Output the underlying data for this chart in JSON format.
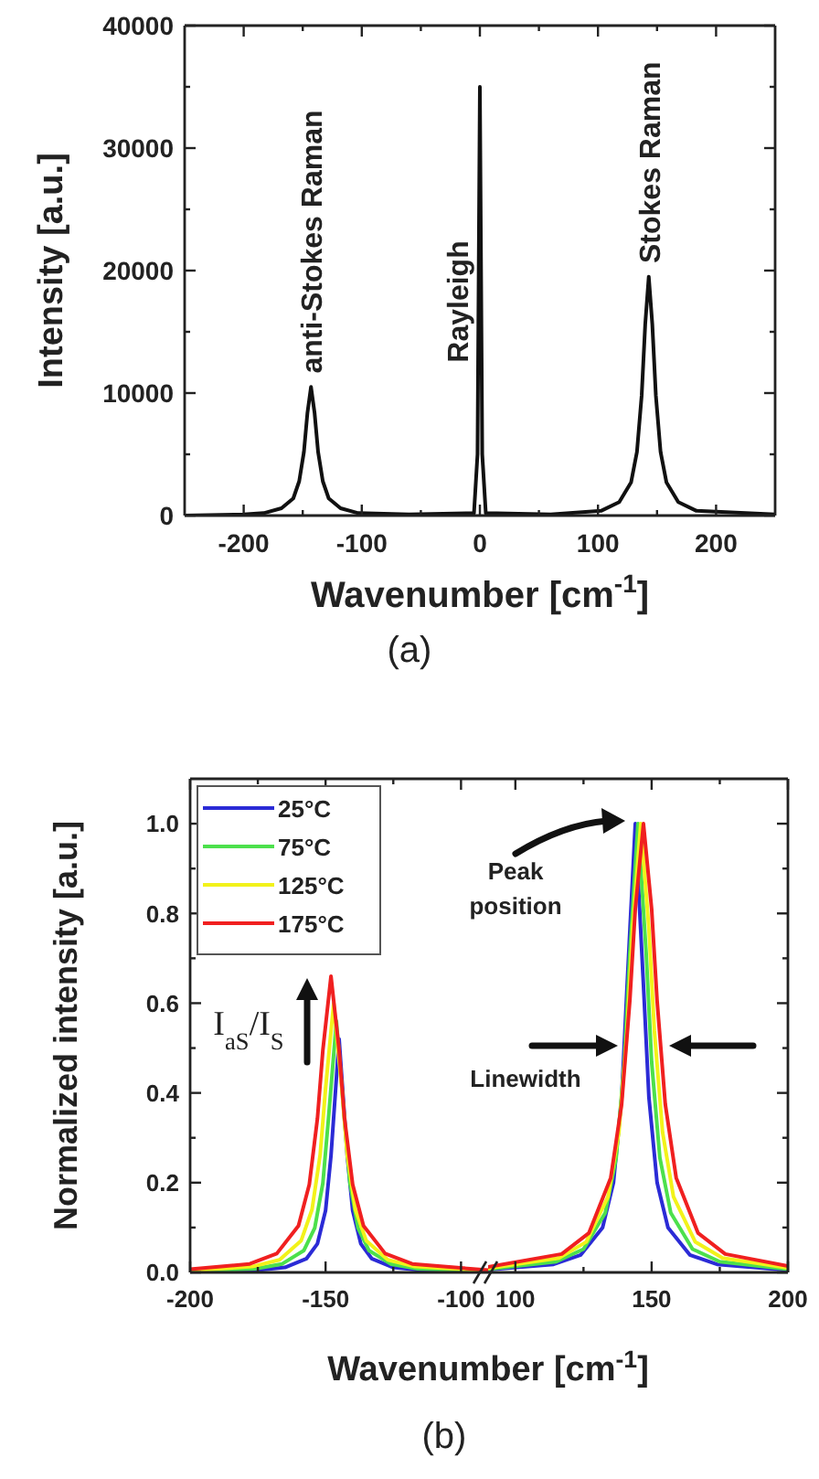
{
  "chart_data": [
    {
      "type": "line",
      "xlabel": "Wavenumber [cm$^{-1}$]",
      "ylabel": "Intensity [a.u.]",
      "xlim": [
        -250,
        250
      ],
      "ylim": [
        0,
        40000
      ],
      "xticks": [
        -200,
        -100,
        0,
        100,
        200,
        {
          "value": -150,
          "label": null
        },
        {
          "value": -50,
          "label": null
        },
        {
          "value": 50,
          "label": null
        },
        {
          "value": 150,
          "label": null
        }
      ],
      "yticks": [
        0,
        10000,
        20000,
        30000,
        40000,
        {
          "value": 5000,
          "label": null
        },
        {
          "value": 15000,
          "label": null
        },
        {
          "value": 25000,
          "label": null
        },
        {
          "value": 35000,
          "label": null
        }
      ],
      "series": [
        {
          "color": "#111111",
          "x": [
            -250,
            -200,
            -183,
            -168,
            -158,
            -153,
            -149,
            -146,
            -143,
            -140,
            -137,
            -133,
            -128,
            -118,
            -103,
            -60,
            -5,
            -2,
            -1,
            0,
            1,
            2,
            5,
            60,
            103,
            118,
            128,
            133,
            137,
            140,
            143,
            146,
            149,
            153,
            158,
            168,
            183,
            250
          ],
          "values": [
            0,
            100,
            200,
            600,
            1400,
            2800,
            5200,
            8400,
            10500,
            8400,
            5200,
            2800,
            1400,
            600,
            200,
            100,
            200,
            5000,
            20000,
            35000,
            20000,
            5000,
            200,
            100,
            400,
            1100,
            2700,
            5200,
            9800,
            15600,
            19500,
            15600,
            9800,
            5200,
            2700,
            1100,
            400,
            100
          ]
        }
      ],
      "annotations": [
        {
          "text": "anti-Stokes Raman",
          "x": -143,
          "y": 11000
        },
        "Rayleigh",
        {
          "text": "Stokes Raman",
          "x": 143,
          "y": 20000
        },
        "(a)"
      ]
    },
    {
      "type": "line",
      "xlabel": "Wavenumber [cm$^{-1}$]",
      "ylabel": "Normalized intensity [a.u.]",
      "xlim": [
        -200,
        -90
      ],
      "ylim": [
        0,
        1.1
      ],
      "xticks": [
        -200,
        -150,
        -100,
        {
          "value": -175,
          "label": null
        },
        {
          "value": -125,
          "label": null
        }
      ],
      "yticks": [
        {
          "value": 0,
          "label": "0.0"
        },
        {
          "value": 0.2,
          "label": "0.2"
        },
        {
          "value": 0.4,
          "label": "0.4"
        },
        {
          "value": 0.6,
          "label": "0.6"
        },
        {
          "value": 0.8,
          "label": "0.8"
        },
        {
          "value": 1,
          "label": "1.0"
        },
        {
          "value": 0.1,
          "label": null
        },
        {
          "value": 0.3,
          "label": null
        },
        {
          "value": 0.5,
          "label": null
        },
        {
          "value": 0.7,
          "label": null
        },
        {
          "value": 0.9,
          "label": null
        }
      ],
      "legend": "top left",
      "series": [
        {
          "name": "25°C",
          "color": "#2b2bd6",
          "x": [
            -200,
            -175,
            -165,
            -157,
            -153,
            -150,
            -148,
            -145,
            -142,
            -140,
            -137,
            -133,
            -125,
            -115,
            -90
          ],
          "values": [
            0.002,
            0.005,
            0.011,
            0.031,
            0.064,
            0.138,
            0.26,
            0.52,
            0.26,
            0.138,
            0.064,
            0.031,
            0.011,
            0.005,
            0.002
          ]
        },
        {
          "name": "75°C",
          "color": "#4ce04c",
          "x": [
            -200,
            -176,
            -166,
            -158,
            -154,
            -151,
            -149,
            -146,
            -143,
            -141,
            -138,
            -134,
            -126,
            -116,
            -90
          ],
          "values": [
            0.003,
            0.008,
            0.019,
            0.049,
            0.099,
            0.199,
            0.338,
            0.56,
            0.338,
            0.199,
            0.099,
            0.049,
            0.019,
            0.008,
            0.002
          ]
        },
        {
          "name": "125°C",
          "color": "#f2f21a",
          "x": [
            -200,
            -177,
            -167,
            -159,
            -155,
            -152,
            -150,
            -147,
            -144,
            -142,
            -139,
            -135,
            -127,
            -117,
            -90
          ],
          "values": [
            0.004,
            0.013,
            0.028,
            0.071,
            0.14,
            0.262,
            0.41,
            0.6,
            0.41,
            0.262,
            0.14,
            0.071,
            0.028,
            0.013,
            0.004
          ]
        },
        {
          "name": "175°C",
          "color": "#f02020",
          "x": [
            -200,
            -178,
            -168,
            -160,
            -156,
            -153,
            -151,
            -148,
            -145,
            -143,
            -140,
            -136,
            -128,
            -118,
            -90
          ],
          "values": [
            0.007,
            0.019,
            0.042,
            0.104,
            0.196,
            0.343,
            0.495,
            0.66,
            0.495,
            0.343,
            0.196,
            0.104,
            0.042,
            0.019,
            0.005
          ]
        }
      ],
      "annotations": [
        "I$_{aS}$/I$_{S}$",
        "(b)"
      ]
    },
    {
      "type": "line",
      "xlim": [
        90,
        200
      ],
      "ylim": [
        0,
        1.1
      ],
      "tick_labels": "x",
      "xticks": [
        100,
        150,
        200,
        {
          "value": 125,
          "label": null
        },
        {
          "value": 175,
          "label": null
        }
      ],
      "yticks": [
        0,
        0.2,
        0.4,
        0.6,
        0.8,
        1,
        {
          "value": 0.1,
          "label": null
        },
        {
          "value": 0.3,
          "label": null
        },
        {
          "value": 0.5,
          "label": null
        },
        {
          "value": 0.7,
          "label": null
        },
        {
          "value": 0.9,
          "label": null
        }
      ],
      "series": [
        {
          "color": "#2b2bd6",
          "x": [
            90,
            114,
            124,
            132,
            136,
            139,
            141,
            144,
            147,
            149,
            152,
            156,
            164,
            174,
            200
          ],
          "values": [
            0.006,
            0.018,
            0.039,
            0.1,
            0.2,
            0.39,
            0.64,
            1,
            0.64,
            0.39,
            0.2,
            0.1,
            0.039,
            0.018,
            0.005
          ]
        },
        {
          "color": "#4ce04c",
          "x": [
            90,
            115,
            125,
            133,
            137,
            140,
            142,
            145,
            148,
            150,
            153,
            157,
            165,
            175,
            200
          ],
          "values": [
            0.007,
            0.024,
            0.052,
            0.133,
            0.256,
            0.469,
            0.711,
            1,
            0.711,
            0.469,
            0.256,
            0.133,
            0.052,
            0.024,
            0.007
          ]
        },
        {
          "color": "#f2f21a",
          "x": [
            90,
            116,
            126,
            134,
            138,
            141,
            143,
            146,
            149,
            151,
            154,
            158,
            166,
            176,
            200
          ],
          "values": [
            0.009,
            0.032,
            0.068,
            0.169,
            0.313,
            0.539,
            0.765,
            1,
            0.765,
            0.539,
            0.313,
            0.169,
            0.068,
            0.032,
            0.01
          ]
        },
        {
          "color": "#f02020",
          "x": [
            90,
            117,
            127,
            135,
            139,
            142,
            144,
            147,
            150,
            152,
            155,
            159,
            167,
            177,
            200
          ],
          "values": [
            0.012,
            0.041,
            0.088,
            0.211,
            0.375,
            0.606,
            0.81,
            1,
            0.81,
            0.606,
            0.375,
            0.211,
            0.088,
            0.041,
            0.014
          ]
        }
      ],
      "annotations": [
        "Peak position",
        {
          "text": "Linewidth",
          "x": 146,
          "y": 0.5
        }
      ]
    }
  ]
}
